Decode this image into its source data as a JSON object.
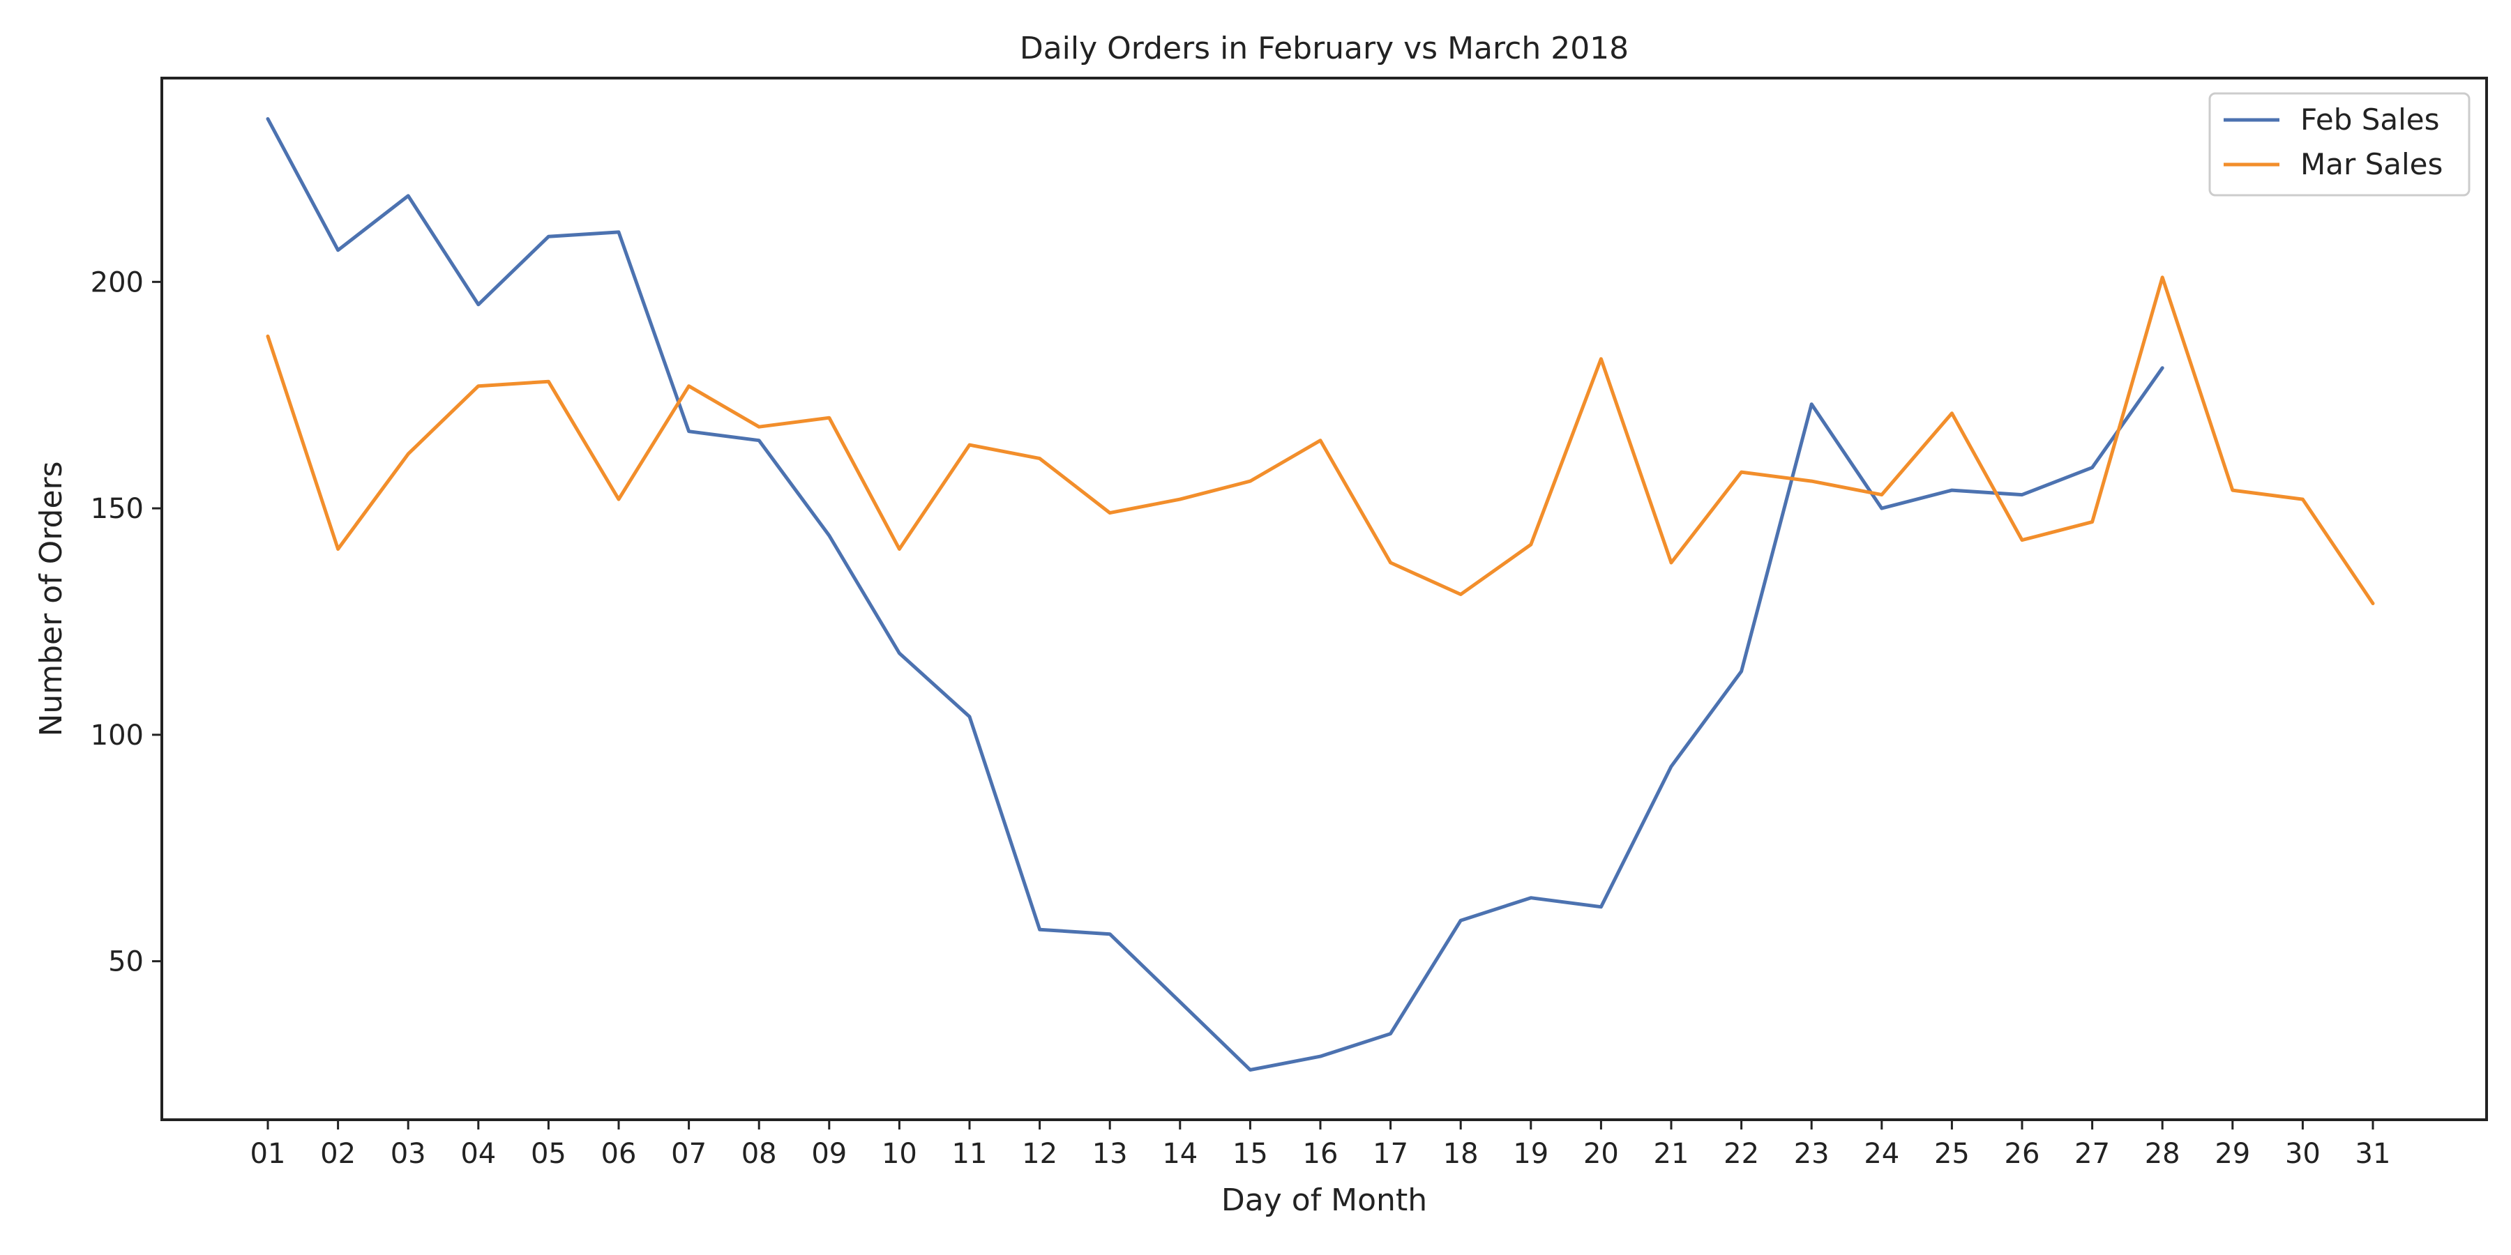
{
  "chart_data": {
    "type": "line",
    "title": "Daily Orders in February vs March 2018",
    "xlabel": "Day of Month",
    "ylabel": "Number of Orders",
    "x": [
      "01",
      "02",
      "03",
      "04",
      "05",
      "06",
      "07",
      "08",
      "09",
      "10",
      "11",
      "12",
      "13",
      "14",
      "15",
      "16",
      "17",
      "18",
      "19",
      "20",
      "21",
      "22",
      "23",
      "24",
      "25",
      "26",
      "27",
      "28",
      "29",
      "30",
      "31"
    ],
    "y_ticks": [
      50,
      100,
      150,
      200
    ],
    "ylim": [
      15,
      245
    ],
    "grid": false,
    "legend_position": "top-right",
    "series": [
      {
        "name": "Feb Sales",
        "color": "#4c72b0",
        "values": [
          236,
          207,
          219,
          195,
          210,
          211,
          167,
          165,
          144,
          118,
          104,
          57,
          56,
          41,
          26,
          29,
          34,
          59,
          64,
          62,
          93,
          114,
          173,
          150,
          154,
          153,
          159,
          181,
          null,
          null,
          null
        ]
      },
      {
        "name": "Mar Sales",
        "color": "#f28e2b",
        "values": [
          188,
          141,
          162,
          177,
          178,
          152,
          177,
          168,
          170,
          141,
          164,
          161,
          149,
          152,
          156,
          165,
          138,
          131,
          142,
          183,
          138,
          158,
          156,
          153,
          171,
          143,
          147,
          201,
          154,
          152,
          129
        ]
      }
    ]
  }
}
